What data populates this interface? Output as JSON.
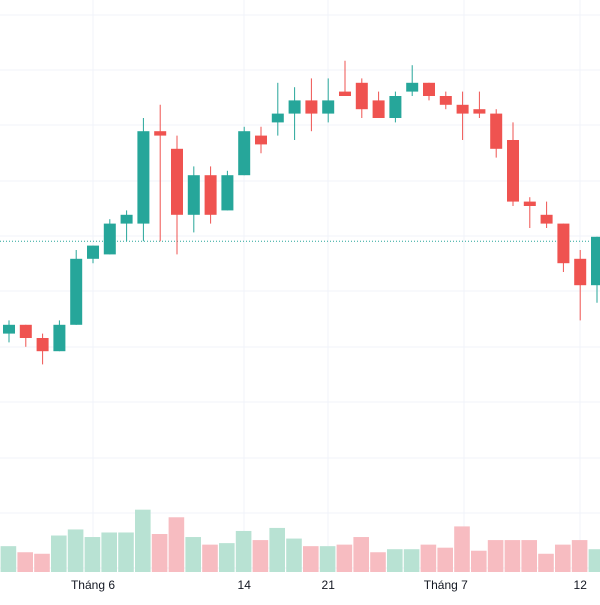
{
  "colors": {
    "up": "#26a69a",
    "down": "#ef5350",
    "up_volume": "#b8e2d3",
    "down_volume": "#f7bcc1",
    "grid": "#f0f3fa",
    "reference_line": "#26a69a",
    "axis_text": "#131722",
    "background": "#ffffff"
  },
  "chart_data": {
    "type": "candlestick",
    "title": "",
    "xlabel": "",
    "ylabel": "",
    "ylim": [
      0,
      100
    ],
    "volume_ylim": [
      0,
      100
    ],
    "reference_line_value": 52,
    "x_tick_labels": [
      {
        "label": "Tháng 6",
        "index": 5
      },
      {
        "label": "14",
        "index": 14
      },
      {
        "label": "21",
        "index": 19
      },
      {
        "label": "Tháng 7",
        "index": 26
      },
      {
        "label": "12",
        "index": 34
      }
    ],
    "candles": [
      {
        "open": 31,
        "high": 34,
        "low": 29,
        "close": 33
      },
      {
        "open": 33,
        "high": 33,
        "low": 28,
        "close": 30
      },
      {
        "open": 30,
        "high": 31,
        "low": 24,
        "close": 27
      },
      {
        "open": 27,
        "high": 34,
        "low": 27,
        "close": 33
      },
      {
        "open": 33,
        "high": 50,
        "low": 33,
        "close": 48
      },
      {
        "open": 48,
        "high": 51,
        "low": 47,
        "close": 51
      },
      {
        "open": 49,
        "high": 57,
        "low": 49,
        "close": 56
      },
      {
        "open": 56,
        "high": 59,
        "low": 52,
        "close": 58
      },
      {
        "open": 56,
        "high": 80,
        "low": 52,
        "close": 77
      },
      {
        "open": 77,
        "high": 83,
        "low": 52,
        "close": 76
      },
      {
        "open": 73,
        "high": 76,
        "low": 49,
        "close": 58
      },
      {
        "open": 58,
        "high": 69,
        "low": 54,
        "close": 67
      },
      {
        "open": 67,
        "high": 69,
        "low": 56,
        "close": 58
      },
      {
        "open": 59,
        "high": 68,
        "low": 59,
        "close": 67
      },
      {
        "open": 67,
        "high": 78,
        "low": 67,
        "close": 77
      },
      {
        "open": 76,
        "high": 78,
        "low": 72,
        "close": 74
      },
      {
        "open": 79,
        "high": 88,
        "low": 76,
        "close": 81
      },
      {
        "open": 81,
        "high": 87,
        "low": 75,
        "close": 84
      },
      {
        "open": 84,
        "high": 89,
        "low": 77,
        "close": 81
      },
      {
        "open": 81,
        "high": 89,
        "low": 79,
        "close": 84
      },
      {
        "open": 86,
        "high": 93,
        "low": 85,
        "close": 85
      },
      {
        "open": 88,
        "high": 89,
        "low": 80,
        "close": 82
      },
      {
        "open": 84,
        "high": 86,
        "low": 80,
        "close": 80
      },
      {
        "open": 80,
        "high": 86,
        "low": 79,
        "close": 85
      },
      {
        "open": 86,
        "high": 92,
        "low": 85,
        "close": 88
      },
      {
        "open": 88,
        "high": 88,
        "low": 84,
        "close": 85
      },
      {
        "open": 85,
        "high": 86,
        "low": 82,
        "close": 83
      },
      {
        "open": 83,
        "high": 86,
        "low": 75,
        "close": 81
      },
      {
        "open": 82,
        "high": 86,
        "low": 80,
        "close": 81
      },
      {
        "open": 81,
        "high": 82,
        "low": 71,
        "close": 73
      },
      {
        "open": 75,
        "high": 79,
        "low": 60,
        "close": 61
      },
      {
        "open": 61,
        "high": 62,
        "low": 55,
        "close": 60
      },
      {
        "open": 58,
        "high": 61,
        "low": 55,
        "close": 56
      },
      {
        "open": 56,
        "high": 56,
        "low": 45,
        "close": 47
      },
      {
        "open": 48,
        "high": 50,
        "low": 34,
        "close": 42
      },
      {
        "open": 42,
        "high": 53,
        "low": 38,
        "close": 53
      }
    ],
    "volume": [
      17,
      13,
      12,
      24,
      28,
      23,
      26,
      26,
      41,
      25,
      36,
      23,
      18,
      19,
      27,
      21,
      29,
      22,
      17,
      17,
      18,
      23,
      13,
      15,
      15,
      18,
      16,
      30,
      14,
      21,
      21,
      21,
      12,
      18,
      21,
      15
    ]
  }
}
